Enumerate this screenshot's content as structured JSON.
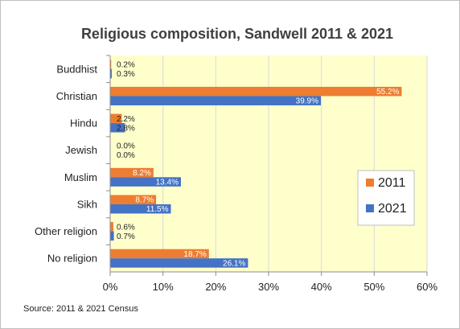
{
  "chart_data": {
    "type": "bar",
    "orientation": "horizontal",
    "title": "Religious composition, Sandwell 2011 & 2021",
    "categories": [
      "Buddhist",
      "Christian",
      "Hindu",
      "Jewish",
      "Muslim",
      "Sikh",
      "Other religion",
      "No religion"
    ],
    "series": [
      {
        "name": "2011",
        "color": "#ed7d31",
        "values": [
          0.2,
          55.2,
          2.2,
          0.0,
          8.2,
          8.7,
          0.6,
          18.7
        ],
        "labels": [
          "0.2%",
          "55.2%",
          "2.2%",
          "0.0%",
          "8.2%",
          "8.7%",
          "0.6%",
          "18.7%"
        ]
      },
      {
        "name": "2021",
        "color": "#4472c4",
        "values": [
          0.3,
          39.9,
          2.8,
          0.0,
          13.4,
          11.5,
          0.7,
          26.1
        ],
        "labels": [
          "0.3%",
          "39.9%",
          "2.8%",
          "0.0%",
          "13.4%",
          "11.5%",
          "0.7%",
          "26.1%"
        ]
      }
    ],
    "xlim": [
      0,
      60
    ],
    "x_ticks": [
      0,
      10,
      20,
      30,
      40,
      50,
      60
    ],
    "x_tick_labels": [
      "0%",
      "10%",
      "20%",
      "30%",
      "40%",
      "50%",
      "60%"
    ],
    "grid": true,
    "plot_background": "#ffffcc",
    "legend_position": "right",
    "source": "Source:  2011 & 2021 Census"
  }
}
